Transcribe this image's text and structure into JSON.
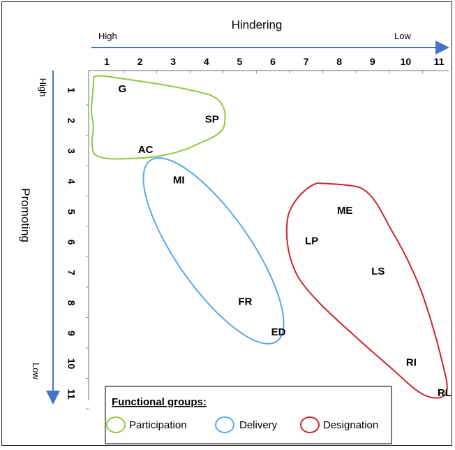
{
  "axes": {
    "x_title": "Hindering",
    "x_high": "High",
    "x_low": "Low",
    "y_title": "Promoting",
    "y_high": "High",
    "y_low": "Low",
    "x_ticks": [
      "1",
      "2",
      "3",
      "4",
      "5",
      "6",
      "7",
      "8",
      "9",
      "10",
      "11"
    ],
    "y_ticks": [
      "1",
      "2",
      "3",
      "4",
      "5",
      "6",
      "7",
      "8",
      "9",
      "10",
      "11"
    ]
  },
  "items": [
    {
      "code": "G",
      "x": 1.3,
      "y": 1,
      "group": "participation"
    },
    {
      "code": "SP",
      "x": 4,
      "y": 2,
      "group": "participation"
    },
    {
      "code": "AC",
      "x": 2,
      "y": 3,
      "group": "participation"
    },
    {
      "code": "MI",
      "x": 3,
      "y": 4,
      "group": "delivery"
    },
    {
      "code": "FR",
      "x": 5,
      "y": 8,
      "group": "delivery"
    },
    {
      "code": "ED",
      "x": 6,
      "y": 9,
      "group": "delivery"
    },
    {
      "code": "ME",
      "x": 8,
      "y": 5,
      "group": "designation"
    },
    {
      "code": "LP",
      "x": 7,
      "y": 6,
      "group": "designation"
    },
    {
      "code": "LS",
      "x": 9,
      "y": 7,
      "group": "designation"
    },
    {
      "code": "RI",
      "x": 10,
      "y": 10,
      "group": "designation"
    },
    {
      "code": "RL",
      "x": 11,
      "y": 11,
      "group": "designation"
    }
  ],
  "legend": {
    "title": "Functional groups:",
    "entries": [
      {
        "label": "Participation",
        "color": "#92C83E"
      },
      {
        "label": "Delivery",
        "color": "#5AA8E6"
      },
      {
        "label": "Designation",
        "color": "#C8262E"
      }
    ]
  },
  "colors": {
    "axis": "#4472C4",
    "participation": "#92C83E",
    "delivery": "#5AA8E6",
    "designation": "#C8262E"
  }
}
